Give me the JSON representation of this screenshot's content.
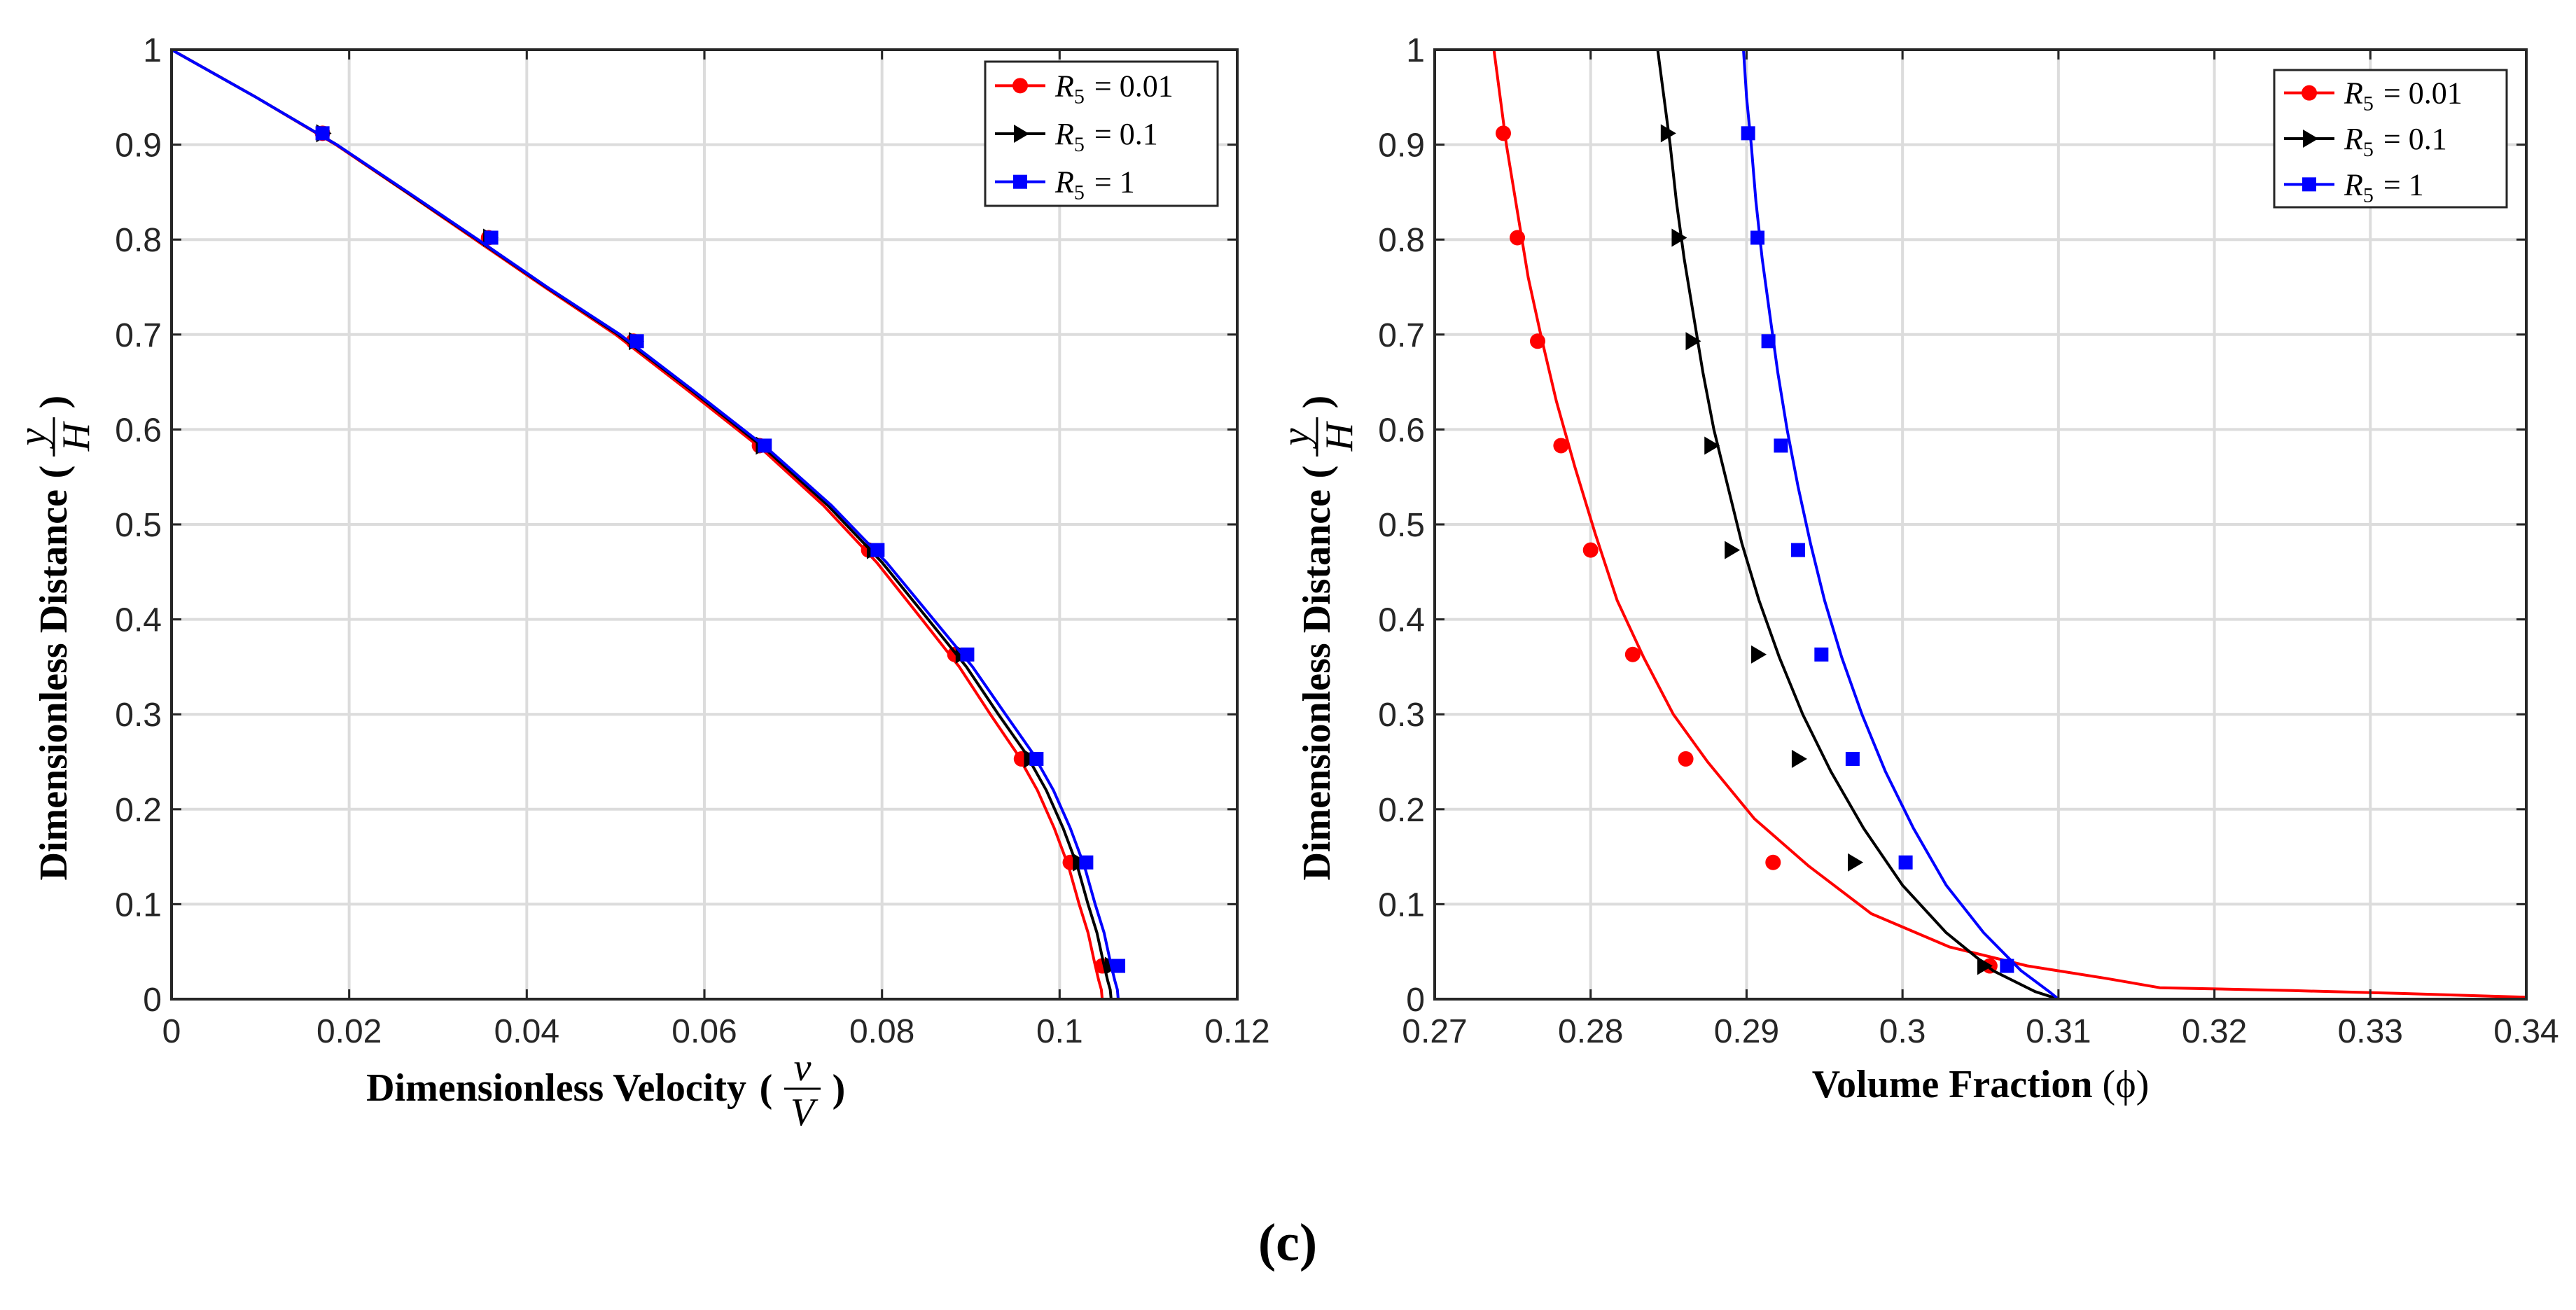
{
  "figure_caption": "(c)",
  "chart_data": [
    {
      "type": "line",
      "panel": "left",
      "xlabel_text": "Dimensionless Velocity",
      "xlabel_math_num": "v",
      "xlabel_math_den": "V",
      "ylabel_text": "Dimensionless Distance",
      "ylabel_math_num": "y",
      "ylabel_math_den": "H",
      "xlim": [
        0,
        0.12
      ],
      "ylim": [
        0,
        1
      ],
      "xticks": [
        0,
        0.02,
        0.04,
        0.06,
        0.08,
        0.1,
        0.12
      ],
      "xtick_labels": [
        "0",
        "0.02",
        "0.04",
        "0.06",
        "0.08",
        "0.1",
        "0.12"
      ],
      "yticks": [
        0,
        0.1,
        0.2,
        0.3,
        0.4,
        0.5,
        0.6,
        0.7,
        0.8,
        0.9,
        1
      ],
      "ytick_labels": [
        "0",
        "0.1",
        "0.2",
        "0.3",
        "0.4",
        "0.5",
        "0.6",
        "0.7",
        "0.8",
        "0.9",
        "1"
      ],
      "grid": true,
      "legend_position": "top-right",
      "series": [
        {
          "name": "R5 = 0.01",
          "legend_sym": "R",
          "legend_sub": "5",
          "legend_value": "= 0.01",
          "color": "#ff0000",
          "marker": "circle",
          "x": [
            0.1048,
            0.1047,
            0.1044,
            0.1039,
            0.1032,
            0.1022,
            0.101,
            0.0994,
            0.0975,
            0.0951,
            0.0922,
            0.0887,
            0.0845,
            0.0794,
            0.0734,
            0.0664,
            0.0583,
            0.05,
            0.042,
            0.0342,
            0.0264,
            0.0185,
            0.0095,
            0
          ],
          "y": [
            0,
            0.01,
            0.02,
            0.04,
            0.07,
            0.1,
            0.14,
            0.18,
            0.22,
            0.26,
            0.3,
            0.35,
            0.4,
            0.46,
            0.52,
            0.58,
            0.64,
            0.7,
            0.75,
            0.8,
            0.85,
            0.9,
            0.95,
            1.0
          ],
          "marker_x": [
            0.1048,
            0.1012,
            0.0957,
            0.0882,
            0.0785,
            0.0662,
            0.052,
            0.0357,
            0.017
          ],
          "marker_y": [
            0.035,
            0.144,
            0.253,
            0.363,
            0.473,
            0.583,
            0.693,
            0.802,
            0.912
          ]
        },
        {
          "name": "R5 = 0.1",
          "legend_sym": "R",
          "legend_sub": "5",
          "legend_value": "= 0.1",
          "color": "#000000",
          "marker": "triangle-right",
          "x": [
            0.1058,
            0.1057,
            0.1054,
            0.1049,
            0.1042,
            0.1032,
            0.102,
            0.1004,
            0.0985,
            0.0961,
            0.0931,
            0.0895,
            0.0852,
            0.08,
            0.0739,
            0.0668,
            0.0587,
            0.0503,
            0.0422,
            0.0344,
            0.0265,
            0.0186,
            0.0095,
            0
          ],
          "y": [
            0,
            0.01,
            0.02,
            0.04,
            0.07,
            0.1,
            0.14,
            0.18,
            0.22,
            0.26,
            0.3,
            0.35,
            0.4,
            0.46,
            0.52,
            0.58,
            0.64,
            0.7,
            0.75,
            0.8,
            0.85,
            0.9,
            0.95,
            1.0
          ],
          "marker_x": [
            0.1058,
            0.1022,
            0.0967,
            0.089,
            0.079,
            0.0665,
            0.0522,
            0.0358,
            0.017
          ],
          "marker_y": [
            0.035,
            0.144,
            0.253,
            0.363,
            0.473,
            0.583,
            0.693,
            0.802,
            0.912
          ]
        },
        {
          "name": "R5 = 1",
          "legend_sym": "R",
          "legend_sub": "5",
          "legend_value": "= 1",
          "color": "#0000ff",
          "marker": "square",
          "x": [
            0.1066,
            0.1065,
            0.1062,
            0.1057,
            0.105,
            0.104,
            0.1028,
            0.1012,
            0.0993,
            0.0969,
            0.0939,
            0.0902,
            0.0858,
            0.0805,
            0.0743,
            0.0671,
            0.0589,
            0.0505,
            0.0423,
            0.0345,
            0.0266,
            0.0186,
            0.0095,
            0
          ],
          "y": [
            0,
            0.01,
            0.02,
            0.04,
            0.07,
            0.1,
            0.14,
            0.18,
            0.22,
            0.26,
            0.3,
            0.35,
            0.4,
            0.46,
            0.52,
            0.58,
            0.64,
            0.7,
            0.75,
            0.8,
            0.85,
            0.9,
            0.95,
            1.0
          ],
          "marker_x": [
            0.1066,
            0.103,
            0.0974,
            0.0896,
            0.0795,
            0.0668,
            0.0524,
            0.036,
            0.017
          ],
          "marker_y": [
            0.035,
            0.144,
            0.253,
            0.363,
            0.473,
            0.583,
            0.693,
            0.802,
            0.912
          ]
        }
      ]
    },
    {
      "type": "line",
      "panel": "right",
      "xlabel_text": "Volume Fraction",
      "xlabel_math": "(ϕ)",
      "ylabel_text": "Dimensionless Distance",
      "ylabel_math_num": "y",
      "ylabel_math_den": "H",
      "xlim": [
        0.27,
        0.34
      ],
      "ylim": [
        0,
        1
      ],
      "xticks": [
        0.27,
        0.28,
        0.29,
        0.3,
        0.31,
        0.32,
        0.33,
        0.34
      ],
      "xtick_labels": [
        "0.27",
        "0.28",
        "0.29",
        "0.3",
        "0.31",
        "0.32",
        "0.33",
        "0.34"
      ],
      "yticks": [
        0,
        0.1,
        0.2,
        0.3,
        0.4,
        0.5,
        0.6,
        0.7,
        0.8,
        0.9,
        1
      ],
      "ytick_labels": [
        "0",
        "0.1",
        "0.2",
        "0.3",
        "0.4",
        "0.5",
        "0.6",
        "0.7",
        "0.8",
        "0.9",
        "1"
      ],
      "grid": true,
      "legend_position": "top-right",
      "series": [
        {
          "name": "R5 = 0.01",
          "legend_sym": "R",
          "legend_sub": "5",
          "legend_value": "= 0.01",
          "color": "#ff0000",
          "marker": "circle",
          "x": [
            0.2738,
            0.2742,
            0.2746,
            0.2753,
            0.276,
            0.2768,
            0.2778,
            0.279,
            0.2803,
            0.2817,
            0.2834,
            0.2853,
            0.2875,
            0.2905,
            0.294,
            0.298,
            0.303,
            0.308,
            0.313,
            0.3165,
            0.325,
            0.332,
            0.34
          ],
          "y": [
            1.0,
            0.95,
            0.9,
            0.83,
            0.76,
            0.7,
            0.63,
            0.56,
            0.49,
            0.42,
            0.36,
            0.3,
            0.25,
            0.19,
            0.14,
            0.09,
            0.055,
            0.035,
            0.022,
            0.012,
            0.009,
            0.006,
            0.002
          ],
          "marker_x": [
            0.2744,
            0.2753,
            0.2766,
            0.2781,
            0.28,
            0.2827,
            0.2861,
            0.2917,
            0.3056
          ],
          "marker_y": [
            0.912,
            0.802,
            0.693,
            0.583,
            0.473,
            0.363,
            0.253,
            0.144,
            0.035
          ]
        },
        {
          "name": "R5 = 0.1",
          "legend_sym": "R",
          "legend_sub": "5",
          "legend_value": "= 0.1",
          "color": "#000000",
          "marker": "triangle-right",
          "x": [
            0.2843,
            0.2847,
            0.2851,
            0.2855,
            0.286,
            0.2866,
            0.2872,
            0.2879,
            0.2888,
            0.2897,
            0.2908,
            0.2921,
            0.2936,
            0.2954,
            0.2975,
            0.3,
            0.3028,
            0.3058,
            0.3085,
            0.31
          ],
          "y": [
            1.0,
            0.95,
            0.9,
            0.84,
            0.78,
            0.72,
            0.66,
            0.6,
            0.54,
            0.48,
            0.42,
            0.36,
            0.3,
            0.24,
            0.18,
            0.12,
            0.07,
            0.03,
            0.008,
            0
          ],
          "marker_x": [
            0.2849,
            0.2856,
            0.2865,
            0.2877,
            0.289,
            0.2907,
            0.2933,
            0.2969,
            0.3052
          ],
          "marker_y": [
            0.912,
            0.802,
            0.693,
            0.583,
            0.473,
            0.363,
            0.253,
            0.144,
            0.035
          ]
        },
        {
          "name": "R5 = 1",
          "legend_sym": "R",
          "legend_sub": "5",
          "legend_value": "= 1",
          "color": "#0000ff",
          "marker": "square",
          "x": [
            0.2898,
            0.29,
            0.2903,
            0.2906,
            0.291,
            0.2915,
            0.292,
            0.2926,
            0.2933,
            0.2941,
            0.295,
            0.2961,
            0.2974,
            0.2989,
            0.3007,
            0.3028,
            0.3052,
            0.3076,
            0.3094,
            0.31
          ],
          "y": [
            1.0,
            0.95,
            0.9,
            0.84,
            0.78,
            0.72,
            0.66,
            0.6,
            0.54,
            0.48,
            0.42,
            0.36,
            0.3,
            0.24,
            0.18,
            0.12,
            0.07,
            0.03,
            0.008,
            0
          ],
          "marker_x": [
            0.2901,
            0.2907,
            0.2914,
            0.2922,
            0.2933,
            0.2948,
            0.2968,
            0.3002,
            0.3067
          ],
          "marker_y": [
            0.912,
            0.802,
            0.693,
            0.583,
            0.473,
            0.363,
            0.253,
            0.144,
            0.035
          ]
        }
      ]
    }
  ]
}
